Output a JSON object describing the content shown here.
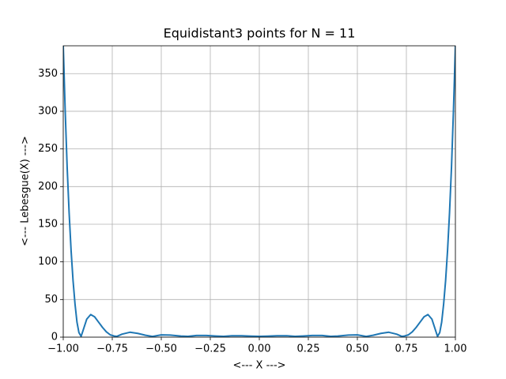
{
  "chart_data": {
    "type": "line",
    "title": "Equidistant3 points for N = 11",
    "xlabel": "<--- X --->",
    "ylabel": "<--- Lebesgue(X) --->",
    "x": [
      -1,
      -0.99,
      -0.98,
      -0.97,
      -0.96,
      -0.95,
      -0.94,
      -0.93,
      -0.92,
      -0.909,
      -0.9,
      -0.88,
      -0.86,
      -0.84,
      -0.82,
      -0.8,
      -0.78,
      -0.76,
      -0.74,
      -0.727,
      -0.7,
      -0.66,
      -0.62,
      -0.58,
      -0.545,
      -0.5,
      -0.455,
      -0.4,
      -0.364,
      -0.32,
      -0.27,
      -0.22,
      -0.182,
      -0.14,
      -0.09,
      -0.04,
      0,
      0.04,
      0.09,
      0.14,
      0.182,
      0.22,
      0.27,
      0.32,
      0.364,
      0.4,
      0.455,
      0.5,
      0.545,
      0.58,
      0.62,
      0.66,
      0.7,
      0.727,
      0.74,
      0.76,
      0.78,
      0.8,
      0.82,
      0.84,
      0.86,
      0.88,
      0.9,
      0.909,
      0.92,
      0.93,
      0.94,
      0.95,
      0.96,
      0.97,
      0.98,
      0.99,
      1
    ],
    "series": [
      {
        "name": "Lebesgue",
        "color": "#1f77b4",
        "values": [
          387,
          300,
          225,
          165,
          115,
          75,
          44,
          20,
          6,
          1,
          8,
          24,
          30,
          27,
          20,
          13,
          7,
          3,
          1.5,
          1,
          4,
          6.5,
          5,
          2.5,
          1,
          3,
          2.8,
          1.5,
          1,
          2.2,
          2.2,
          1.5,
          1,
          1.9,
          1.9,
          1.3,
          1,
          1.3,
          1.9,
          1.9,
          1,
          1.5,
          2.2,
          2.2,
          1,
          1.5,
          2.8,
          3,
          1,
          2.5,
          5,
          6.5,
          4,
          1,
          1.5,
          3,
          7,
          13,
          20,
          27,
          30,
          24,
          8,
          1,
          6,
          20,
          44,
          75,
          115,
          165,
          225,
          300,
          387
        ]
      }
    ],
    "xlim": [
      -1,
      1
    ],
    "ylim": [
      0,
      387
    ],
    "xticks": [
      {
        "value": -1,
        "label": "−1.00"
      },
      {
        "value": -0.75,
        "label": "−0.75"
      },
      {
        "value": -0.5,
        "label": "−0.50"
      },
      {
        "value": -0.25,
        "label": "−0.25"
      },
      {
        "value": 0,
        "label": "0.00"
      },
      {
        "value": 0.25,
        "label": "0.25"
      },
      {
        "value": 0.5,
        "label": "0.50"
      },
      {
        "value": 0.75,
        "label": "0.75"
      },
      {
        "value": 1,
        "label": "1.00"
      }
    ],
    "yticks": [
      0,
      50,
      100,
      150,
      200,
      250,
      300,
      350
    ],
    "grid": true
  }
}
